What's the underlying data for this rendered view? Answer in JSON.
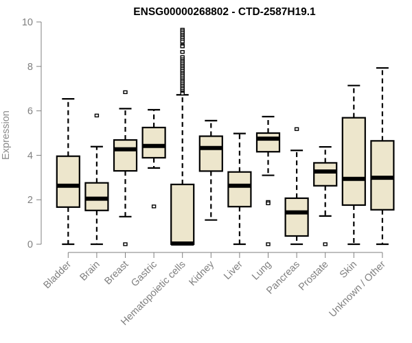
{
  "chart_data": {
    "type": "boxplot",
    "title": "ENSG00000268802 - CTD-2587H19.1",
    "xlabel": "",
    "ylabel": "Expression",
    "ylim": [
      0,
      10
    ],
    "yticks": [
      "0",
      "2",
      "4",
      "6",
      "8",
      "10"
    ],
    "grid": false,
    "legend": "none",
    "colors": {
      "box_fill": "#ede6cc",
      "stroke": "#000000",
      "axis": "#7f7f7f",
      "tick_text": "#7f7f7f"
    },
    "categories": [
      "Bladder",
      "Brain",
      "Breast",
      "Gastric",
      "Hematopoietic cells",
      "Kidney",
      "Liver",
      "Lung",
      "Pancreas",
      "Prostate",
      "Skin",
      "Unknown / Other"
    ],
    "boxes": [
      {
        "name": "Bladder",
        "whisker_low": 0,
        "q1": 1.67,
        "median": 2.63,
        "q3": 3.96,
        "whisker_high": 6.54,
        "outliers": []
      },
      {
        "name": "Brain",
        "whisker_low": 0,
        "q1": 1.52,
        "median": 2.05,
        "q3": 2.76,
        "whisker_high": 4.39,
        "outliers": [
          5.79
        ]
      },
      {
        "name": "Breast",
        "whisker_low": 1.24,
        "q1": 3.3,
        "median": 4.27,
        "q3": 4.69,
        "whisker_high": 6.1,
        "outliers": [
          6.84,
          0
        ]
      },
      {
        "name": "Gastric",
        "whisker_low": 3.43,
        "q1": 3.89,
        "median": 4.42,
        "q3": 5.25,
        "whisker_high": 6.05,
        "outliers": [
          1.7
        ]
      },
      {
        "name": "Hematopoietic cells",
        "whisker_low": 0,
        "q1": 0,
        "median": 0.03,
        "q3": 2.69,
        "whisker_high": 6.72,
        "outliers": [
          9.65,
          9.58,
          9.5,
          9.42,
          9.35,
          9.28,
          9.2,
          9.12,
          8.95,
          8.9,
          8.65,
          8.42,
          8.32,
          8.25,
          8.18,
          8.1,
          8.02,
          7.95,
          7.88,
          7.8,
          7.72,
          7.65,
          7.58,
          7.5,
          7.42,
          7.35,
          7.28,
          7.2,
          7.12,
          7.05,
          6.98,
          6.9,
          6.83,
          6.78
        ]
      },
      {
        "name": "Kidney",
        "whisker_low": 1.09,
        "q1": 3.29,
        "median": 4.33,
        "q3": 4.86,
        "whisker_high": 5.56,
        "outliers": []
      },
      {
        "name": "Liver",
        "whisker_low": 0,
        "q1": 1.69,
        "median": 2.63,
        "q3": 3.25,
        "whisker_high": 4.98,
        "outliers": []
      },
      {
        "name": "Lung",
        "whisker_low": 3.1,
        "q1": 4.16,
        "median": 4.75,
        "q3": 5.0,
        "whisker_high": 5.74,
        "outliers": [
          1.9,
          1.84,
          0
        ]
      },
      {
        "name": "Pancreas",
        "whisker_low": 0,
        "q1": 0.37,
        "median": 1.43,
        "q3": 2.07,
        "whisker_high": 4.22,
        "outliers": [
          5.18
        ]
      },
      {
        "name": "Prostate",
        "whisker_low": 1.27,
        "q1": 2.63,
        "median": 3.27,
        "q3": 3.66,
        "whisker_high": 4.38,
        "outliers": [
          0
        ]
      },
      {
        "name": "Skin",
        "whisker_low": 0,
        "q1": 1.76,
        "median": 2.94,
        "q3": 5.69,
        "whisker_high": 7.14,
        "outliers": []
      },
      {
        "name": "Unknown / Other",
        "whisker_low": 0,
        "q1": 1.55,
        "median": 2.99,
        "q3": 4.65,
        "whisker_high": 7.93,
        "outliers": []
      }
    ]
  }
}
